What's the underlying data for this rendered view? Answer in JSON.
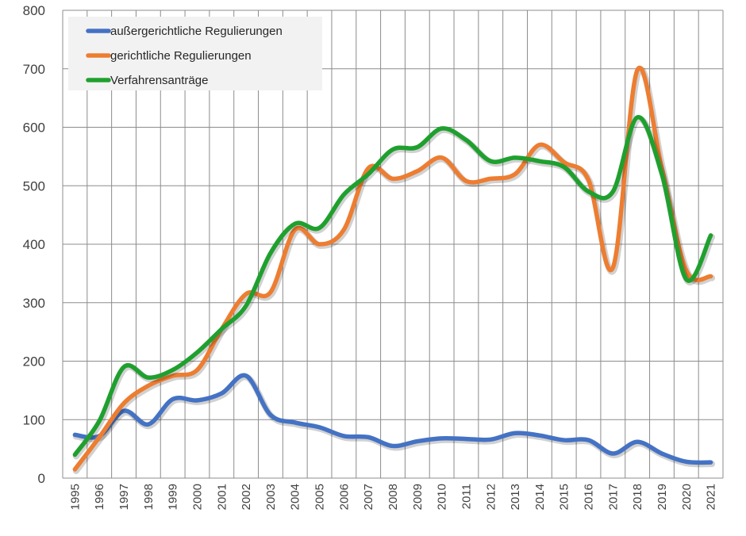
{
  "chart_data": {
    "type": "line",
    "title": "",
    "xlabel": "",
    "ylabel": "",
    "x": [
      "1995",
      "1996",
      "1997",
      "1998",
      "1999",
      "2000",
      "2001",
      "2002",
      "2003",
      "2004",
      "2005",
      "2006",
      "2007",
      "2008",
      "2009",
      "2010",
      "2011",
      "2012",
      "2013",
      "2014",
      "2015",
      "2016",
      "2017",
      "2018",
      "2019",
      "2020",
      "2021"
    ],
    "ylim": [
      0,
      800
    ],
    "yticks": [
      "0",
      "100",
      "200",
      "300",
      "400",
      "500",
      "600",
      "700",
      "800"
    ],
    "grid": true,
    "legend_position": "top-left",
    "series": [
      {
        "name": "außergerichtliche Regulierungen",
        "color": "#4472c4",
        "values": [
          74,
          72,
          115,
          92,
          135,
          133,
          145,
          175,
          108,
          95,
          87,
          72,
          70,
          55,
          63,
          68,
          67,
          66,
          77,
          73,
          65,
          65,
          42,
          62,
          42,
          28,
          27
        ]
      },
      {
        "name": "gerichtliche Regulierungen",
        "color": "#ed7d31",
        "values": [
          15,
          70,
          128,
          158,
          175,
          185,
          255,
          315,
          318,
          425,
          400,
          425,
          530,
          512,
          525,
          548,
          508,
          512,
          520,
          570,
          540,
          510,
          360,
          698,
          530,
          355,
          345
        ]
      },
      {
        "name": "Verfahrensanträge",
        "color": "#1fa02e",
        "values": [
          40,
          98,
          190,
          172,
          185,
          215,
          255,
          295,
          385,
          435,
          428,
          485,
          520,
          562,
          566,
          598,
          578,
          542,
          548,
          542,
          532,
          490,
          490,
          617,
          520,
          340,
          415
        ]
      }
    ]
  }
}
